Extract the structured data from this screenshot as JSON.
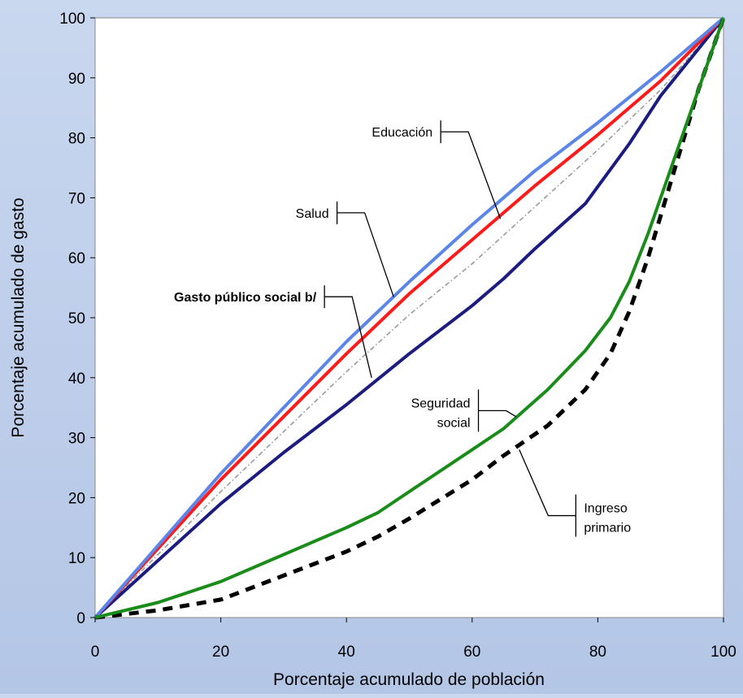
{
  "chart_data": {
    "type": "line",
    "title": "",
    "xlabel": "Porcentaje acumulado de población",
    "ylabel": "Porcentaje acumulado de gasto",
    "xlim": [
      0,
      100
    ],
    "ylim": [
      0,
      100
    ],
    "x_ticks": [
      0,
      20,
      40,
      60,
      80,
      100
    ],
    "y_ticks": [
      0,
      10,
      20,
      30,
      40,
      50,
      60,
      70,
      80,
      90,
      100
    ],
    "grid": false,
    "legend": "none",
    "series": [
      {
        "name": "Educación",
        "color": "#5b86e8",
        "dash": "solid",
        "points": [
          [
            0,
            0
          ],
          [
            10,
            12
          ],
          [
            20,
            24
          ],
          [
            30,
            35
          ],
          [
            40,
            46
          ],
          [
            50,
            56
          ],
          [
            60,
            65.5
          ],
          [
            70,
            74.5
          ],
          [
            80,
            82.5
          ],
          [
            90,
            91
          ],
          [
            100,
            100
          ]
        ]
      },
      {
        "name": "Salud",
        "color": "#ff1a1a",
        "dash": "solid",
        "points": [
          [
            0,
            0
          ],
          [
            10,
            11.5
          ],
          [
            20,
            23
          ],
          [
            30,
            33.5
          ],
          [
            40,
            44
          ],
          [
            50,
            54
          ],
          [
            60,
            63
          ],
          [
            70,
            72
          ],
          [
            80,
            80.5
          ],
          [
            90,
            89.5
          ],
          [
            100,
            100
          ]
        ]
      },
      {
        "name": "Gasto público social b/",
        "color": "#9a9a9a",
        "dash": "dashdot",
        "points": [
          [
            0,
            0
          ],
          [
            10,
            10.5
          ],
          [
            20,
            21
          ],
          [
            30,
            31
          ],
          [
            40,
            41
          ],
          [
            50,
            50.5
          ],
          [
            60,
            59
          ],
          [
            70,
            68.5
          ],
          [
            80,
            78
          ],
          [
            90,
            88
          ],
          [
            100,
            100
          ]
        ]
      },
      {
        "name": "",
        "color": "#1c1c80",
        "dash": "solid",
        "points": [
          [
            0,
            0
          ],
          [
            10,
            9.5
          ],
          [
            20,
            19
          ],
          [
            30,
            27.5
          ],
          [
            40,
            35.5
          ],
          [
            50,
            44
          ],
          [
            60,
            52
          ],
          [
            65,
            56.5
          ],
          [
            70,
            61.5
          ],
          [
            78,
            69
          ],
          [
            85,
            79
          ],
          [
            90,
            87
          ],
          [
            100,
            100
          ]
        ]
      },
      {
        "name": "Seguridad social",
        "color": "#1a8c1a",
        "dash": "solid",
        "points": [
          [
            0,
            0
          ],
          [
            10,
            2.5
          ],
          [
            20,
            6
          ],
          [
            30,
            10.5
          ],
          [
            40,
            15
          ],
          [
            45,
            17.5
          ],
          [
            50,
            21
          ],
          [
            60,
            28
          ],
          [
            65,
            31.5
          ],
          [
            72,
            38
          ],
          [
            78,
            44.5
          ],
          [
            82,
            50
          ],
          [
            85,
            56
          ],
          [
            88,
            64
          ],
          [
            92,
            76
          ],
          [
            96,
            88
          ],
          [
            100,
            100
          ]
        ]
      },
      {
        "name": "Ingreso primario",
        "color": "#000000",
        "dash": "dashed",
        "points": [
          [
            0,
            0
          ],
          [
            10,
            1.2
          ],
          [
            20,
            3
          ],
          [
            30,
            7
          ],
          [
            40,
            11
          ],
          [
            45,
            13.5
          ],
          [
            50,
            16.5
          ],
          [
            60,
            23
          ],
          [
            65,
            27
          ],
          [
            72,
            32
          ],
          [
            78,
            38
          ],
          [
            82,
            44
          ],
          [
            85,
            51
          ],
          [
            88,
            60
          ],
          [
            92,
            74
          ],
          [
            96,
            88
          ],
          [
            100,
            100
          ]
        ]
      }
    ],
    "annotations": [
      {
        "text": "Educación",
        "x": 50,
        "y": 81,
        "bold": false,
        "bracket": [
          55,
          81
        ],
        "leader_to": [
          64.5,
          66.5
        ]
      },
      {
        "text": "Salud",
        "x": 37.5,
        "y": 68.5,
        "bold": false,
        "bracket": [
          38.5,
          67.5
        ],
        "leader_to": [
          47.5,
          53.5
        ]
      },
      {
        "text": "Gasto público social b/",
        "x": 34.5,
        "y": 54,
        "bold": true,
        "bracket": [
          36.5,
          53.5
        ],
        "leader_to": [
          44,
          40
        ]
      },
      {
        "text": "Seguridad social",
        "x": 61.5,
        "y": 33.5,
        "bold": false,
        "two_line": true,
        "bracket": [
          61,
          34.5
        ],
        "leader_to": [
          67,
          33.5
        ]
      },
      {
        "text": "Ingreso primario",
        "x": 78,
        "y": 13,
        "bold": false,
        "two_line": true,
        "bracket": [
          76.5,
          17
        ],
        "leader_to": [
          67.5,
          28
        ]
      }
    ]
  }
}
